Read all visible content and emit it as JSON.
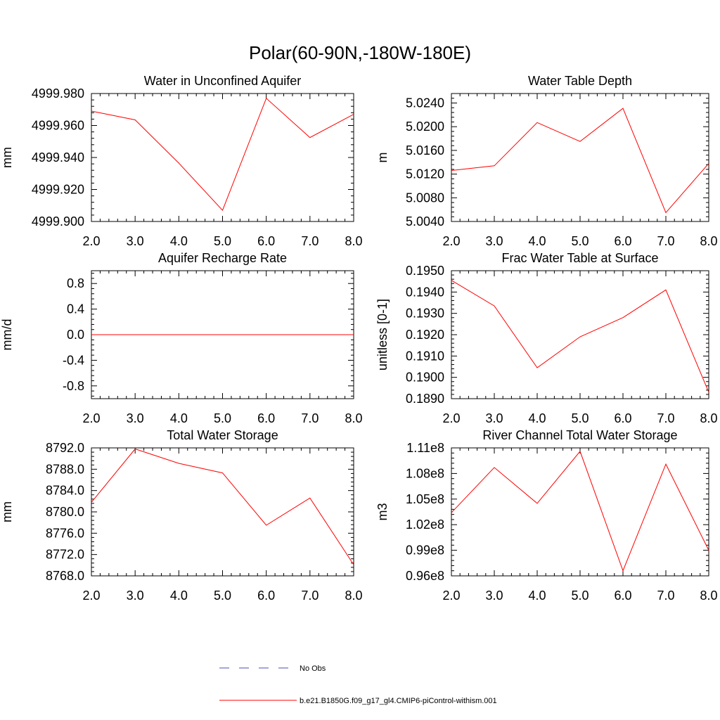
{
  "title": "Polar(60-90N,-180W-180E)",
  "colors": {
    "model_line": "#ff0000",
    "obs_line": "#4b4bb4",
    "axis": "#000000"
  },
  "legend": {
    "entries": [
      {
        "label": "No Obs",
        "style": "dashed",
        "color": "#4b4bb4"
      },
      {
        "label": "b.e21.B1850G.f09_g17_gl4.CMIP6-piControl-withism.001",
        "style": "solid",
        "color": "#ff0000"
      }
    ]
  },
  "chart_data": [
    {
      "type": "line",
      "title": "Water in Unconfined Aquifer",
      "xlabel": "",
      "ylabel": "mm",
      "xlim": [
        2,
        8
      ],
      "ylim": [
        4999.9,
        4999.98
      ],
      "xticks": [
        2,
        3,
        4,
        5,
        6,
        7,
        8
      ],
      "xtick_labels": [
        "2.0",
        "3.0",
        "4.0",
        "5.0",
        "6.0",
        "7.0",
        "8.0"
      ],
      "yticks": [
        4999.9,
        4999.92,
        4999.94,
        4999.96,
        4999.98
      ],
      "ytick_labels": [
        "4999.900",
        "4999.920",
        "4999.940",
        "4999.960",
        "4999.980"
      ],
      "yminor": 4,
      "series": [
        {
          "name": "b.e21.B1850G.f09_g17_gl4.CMIP6-piControl-withism.001",
          "x": [
            2,
            3,
            4,
            5,
            6,
            7,
            8
          ],
          "values": [
            4999.969,
            4999.9635,
            4999.9365,
            4999.907,
            4999.977,
            4999.9525,
            4999.967
          ]
        }
      ]
    },
    {
      "type": "line",
      "title": "Water Table Depth",
      "xlabel": "",
      "ylabel": "m",
      "xlim": [
        2,
        8
      ],
      "ylim": [
        5.004,
        5.0256
      ],
      "xticks": [
        2,
        3,
        4,
        5,
        6,
        7,
        8
      ],
      "xtick_labels": [
        "2.0",
        "3.0",
        "4.0",
        "5.0",
        "6.0",
        "7.0",
        "8.0"
      ],
      "yticks": [
        5.004,
        5.008,
        5.012,
        5.016,
        5.02,
        5.024
      ],
      "ytick_labels": [
        "5.0040",
        "5.0080",
        "5.0120",
        "5.0160",
        "5.0200",
        "5.0240"
      ],
      "yminor": 4,
      "series": [
        {
          "name": "b.e21.B1850G.f09_g17_gl4.CMIP6-piControl-withism.001",
          "x": [
            2,
            3,
            4,
            5,
            6,
            7,
            8
          ],
          "values": [
            5.0126,
            5.0134,
            5.0207,
            5.0175,
            5.0231,
            5.0055,
            5.0138
          ]
        }
      ]
    },
    {
      "type": "line",
      "title": "Aquifer Recharge Rate",
      "xlabel": "",
      "ylabel": "mm/d",
      "xlim": [
        2,
        8
      ],
      "ylim": [
        -1,
        1
      ],
      "xticks": [
        2,
        3,
        4,
        5,
        6,
        7,
        8
      ],
      "xtick_labels": [
        "2.0",
        "3.0",
        "4.0",
        "5.0",
        "6.0",
        "7.0",
        "8.0"
      ],
      "yticks": [
        -0.8,
        -0.4,
        0,
        0.4,
        0.8
      ],
      "ytick_labels": [
        "-0.8",
        "-0.4",
        "0.0",
        "0.4",
        "0.8"
      ],
      "yminor": 4,
      "series": [
        {
          "name": "b.e21.B1850G.f09_g17_gl4.CMIP6-piControl-withism.001",
          "x": [
            2,
            3,
            4,
            5,
            6,
            7,
            8
          ],
          "values": [
            0,
            0,
            0,
            0,
            0,
            0,
            0
          ]
        }
      ]
    },
    {
      "type": "line",
      "title": "Frac Water Table at Surface",
      "xlabel": "",
      "ylabel": "unitless [0-1]",
      "xlim": [
        2,
        8
      ],
      "ylim": [
        0.189,
        0.195
      ],
      "xticks": [
        2,
        3,
        4,
        5,
        6,
        7,
        8
      ],
      "xtick_labels": [
        "2.0",
        "3.0",
        "4.0",
        "5.0",
        "6.0",
        "7.0",
        "8.0"
      ],
      "yticks": [
        0.189,
        0.19,
        0.191,
        0.192,
        0.193,
        0.194,
        0.195
      ],
      "ytick_labels": [
        "0.1890",
        "0.1900",
        "0.1910",
        "0.1920",
        "0.1930",
        "0.1940",
        "0.1950"
      ],
      "yminor": 4,
      "series": [
        {
          "name": "b.e21.B1850G.f09_g17_gl4.CMIP6-piControl-withism.001",
          "x": [
            2,
            3,
            4,
            5,
            6,
            7,
            8
          ],
          "values": [
            0.19455,
            0.19335,
            0.19045,
            0.1919,
            0.1928,
            0.1941,
            0.1893
          ]
        }
      ]
    },
    {
      "type": "line",
      "title": "Total Water Storage",
      "xlabel": "",
      "ylabel": "mm",
      "xlim": [
        2,
        8
      ],
      "ylim": [
        8768,
        8792
      ],
      "xticks": [
        2,
        3,
        4,
        5,
        6,
        7,
        8
      ],
      "xtick_labels": [
        "2.0",
        "3.0",
        "4.0",
        "5.0",
        "6.0",
        "7.0",
        "8.0"
      ],
      "yticks": [
        8768,
        8772,
        8776,
        8780,
        8784,
        8788,
        8792
      ],
      "ytick_labels": [
        "8768.0",
        "8772.0",
        "8776.0",
        "8780.0",
        "8784.0",
        "8788.0",
        "8792.0"
      ],
      "yminor": 4,
      "series": [
        {
          "name": "b.e21.B1850G.f09_g17_gl4.CMIP6-piControl-withism.001",
          "x": [
            2,
            3,
            4,
            5,
            6,
            7,
            8
          ],
          "values": [
            8781.8,
            8791.8,
            8789.1,
            8787.3,
            8777.5,
            8782.6,
            8770.1
          ]
        }
      ]
    },
    {
      "type": "line",
      "title": "River Channel Total Water Storage",
      "xlabel": "",
      "ylabel": "m3",
      "xlim": [
        2,
        8
      ],
      "ylim": [
        96000000,
        111000000
      ],
      "xticks": [
        2,
        3,
        4,
        5,
        6,
        7,
        8
      ],
      "xtick_labels": [
        "2.0",
        "3.0",
        "4.0",
        "5.0",
        "6.0",
        "7.0",
        "8.0"
      ],
      "yticks": [
        96000000,
        99000000,
        102000000,
        105000000,
        108000000,
        111000000
      ],
      "ytick_labels": [
        "0.96e8",
        "0.99e8",
        "1.02e8",
        "1.05e8",
        "1.08e8",
        "1.11e8"
      ],
      "yminor": 4,
      "series": [
        {
          "name": "b.e21.B1850G.f09_g17_gl4.CMIP6-piControl-withism.001",
          "x": [
            2,
            3,
            4,
            5,
            6,
            7,
            8
          ],
          "values": [
            103400000,
            108700000,
            104500000,
            110600000,
            96600000,
            109100000,
            99000000
          ]
        }
      ]
    }
  ]
}
